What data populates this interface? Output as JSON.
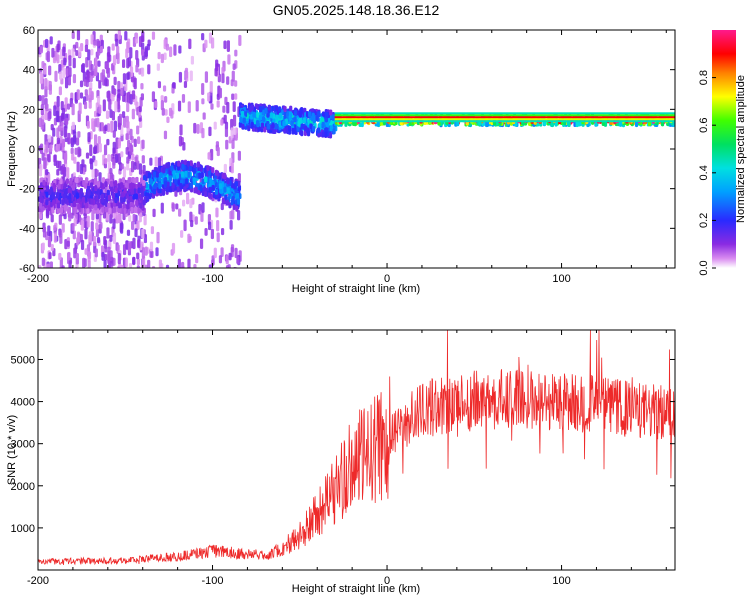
{
  "title": "GN05.2025.148.18.36.E12",
  "chart_data": [
    {
      "type": "heatmap",
      "xlabel": "Height of straight line (km)",
      "ylabel": "Frequency (Hz)",
      "xlim": [
        -200,
        165
      ],
      "ylim": [
        -60,
        60
      ],
      "xticks": [
        -200,
        -100,
        0,
        100
      ],
      "yticks": [
        -60,
        -40,
        -20,
        0,
        20,
        40,
        60
      ],
      "colorbar": {
        "label": "Normalized spectral amplitude",
        "range": [
          0,
          1
        ],
        "ticks": [
          0.0,
          0.2,
          0.4,
          0.6,
          0.8
        ],
        "colormap": "rainbow (magenta-blue-cyan-green-yellow-red-pink)"
      },
      "features": [
        {
          "region": "noise",
          "x": [
            -200,
            -85
          ],
          "freq_range": [
            -60,
            60
          ],
          "amplitude": 0.08
        },
        {
          "region": "low-band",
          "x": [
            -140,
            -85
          ],
          "freq_center": -18,
          "freq_width": 14,
          "amplitude": 0.3
        },
        {
          "region": "low-band-faint",
          "x": [
            -200,
            -140
          ],
          "freq_center": -22,
          "freq_width": 16,
          "amplitude": 0.15
        },
        {
          "region": "transition-band",
          "x": [
            -85,
            -30
          ],
          "freq_center": 18,
          "freq_width": 12,
          "amplitude": 0.35
        },
        {
          "region": "steady-band",
          "x": [
            -30,
            165
          ],
          "freq_center": 16,
          "freq_width": 4,
          "amplitude": 0.85
        }
      ]
    },
    {
      "type": "line",
      "xlabel": "Height of straight line (km)",
      "ylabel": "SNR (10 * v/v)",
      "xlim": [
        -200,
        165
      ],
      "ylim": [
        0,
        5700
      ],
      "xticks": [
        -200,
        -100,
        0,
        100
      ],
      "yticks": [
        1000,
        2000,
        3000,
        4000,
        5000
      ],
      "series": [
        {
          "color": "#ee2a2a",
          "envelope_x": [
            -200,
            -150,
            -120,
            -100,
            -80,
            -70,
            -60,
            -50,
            -40,
            -30,
            -20,
            -10,
            0,
            10,
            20,
            40,
            60,
            80,
            100,
            120,
            140,
            165
          ],
          "envelope_y": [
            200,
            230,
            320,
            450,
            380,
            350,
            500,
            800,
            1300,
            1900,
            2500,
            2800,
            3000,
            3500,
            3800,
            4000,
            4050,
            4050,
            4000,
            3950,
            3800,
            3700
          ]
        }
      ]
    }
  ]
}
